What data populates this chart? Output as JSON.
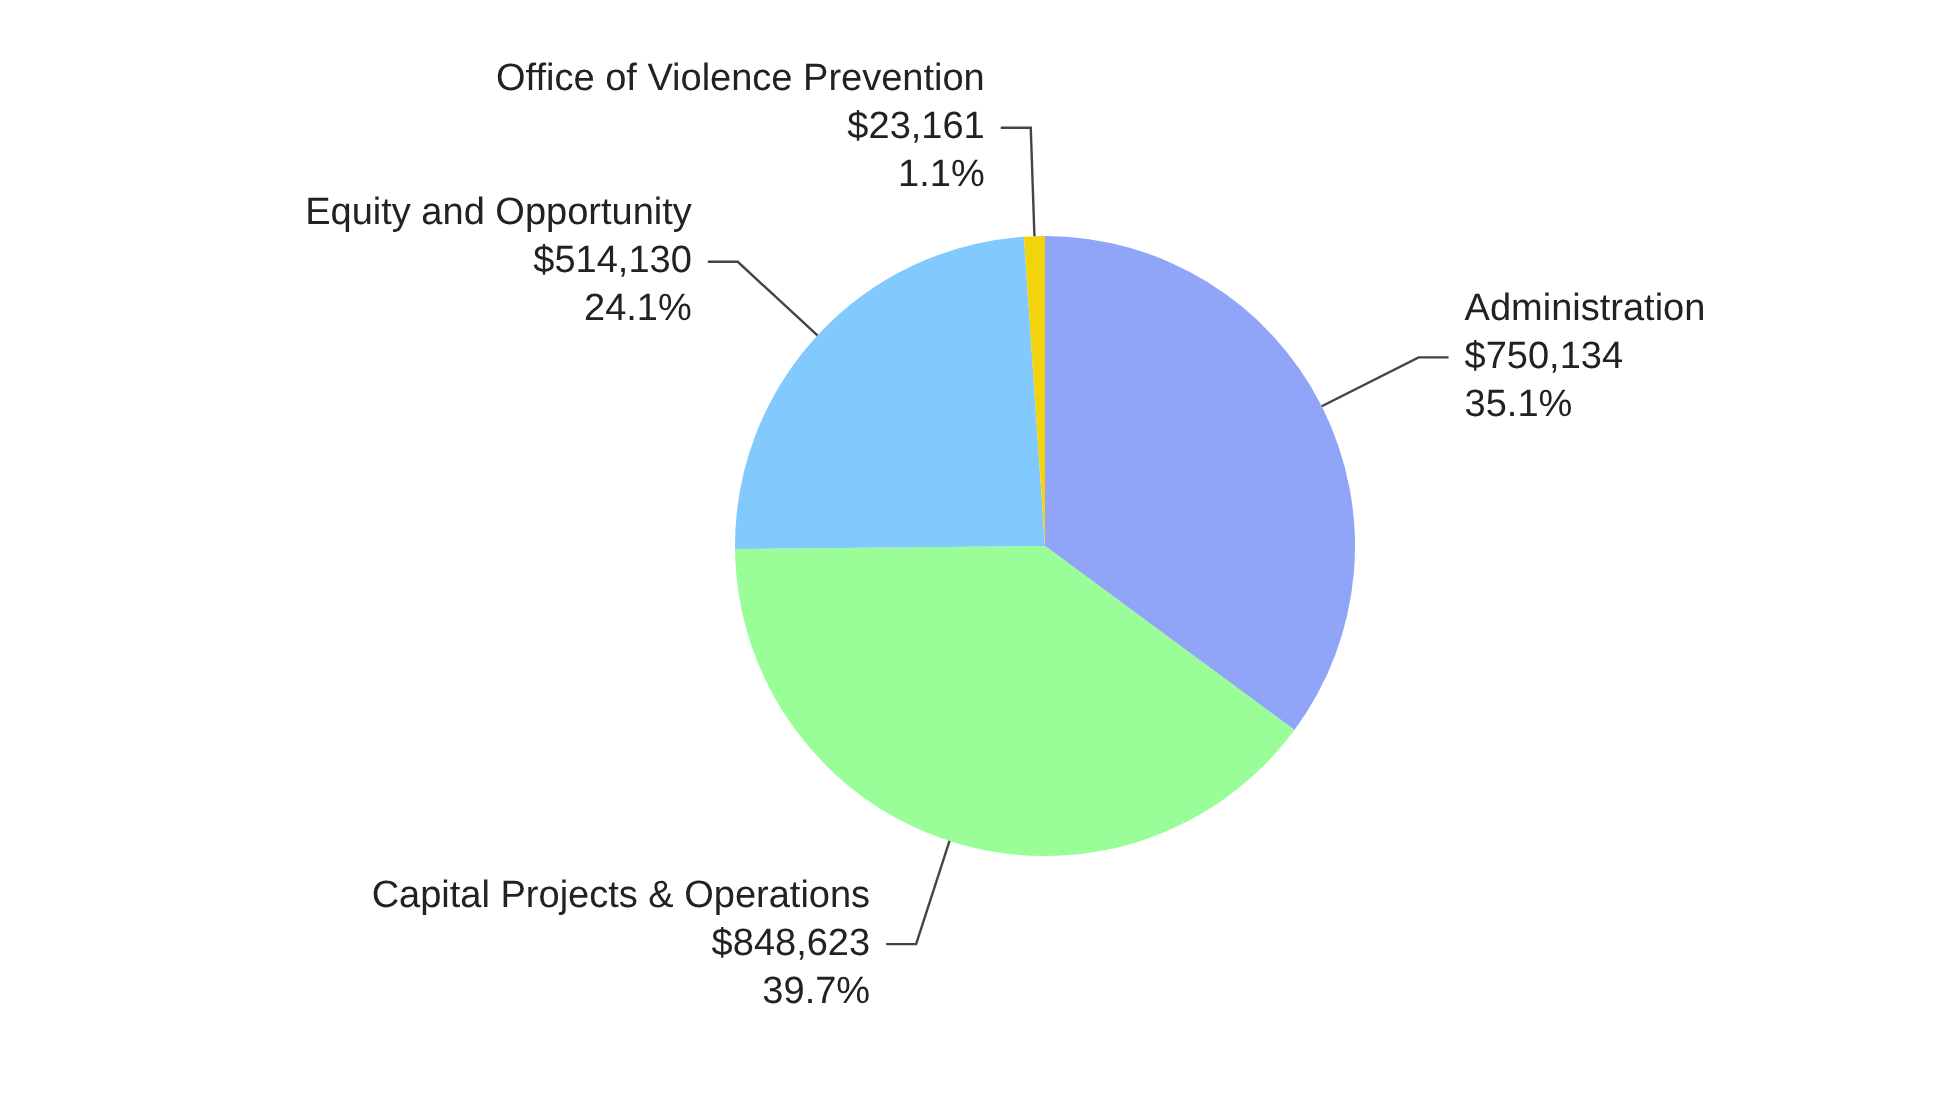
{
  "chart_data": {
    "type": "pie",
    "categories": [
      "Administration",
      "Capital Projects & Operations",
      "Equity and Opportunity",
      "Office of Violence Prevention"
    ],
    "values": [
      750134,
      848623,
      514130,
      23161
    ],
    "colors": [
      "#91a5f8",
      "#99fe98",
      "#82c9fd",
      "#f2d40c"
    ],
    "value_labels": [
      "$750,134\n35.1%",
      "$848,623\n39.7%",
      "$514,130\n24.1%",
      "$23,161\n1.1%"
    ],
    "legend": false
  }
}
